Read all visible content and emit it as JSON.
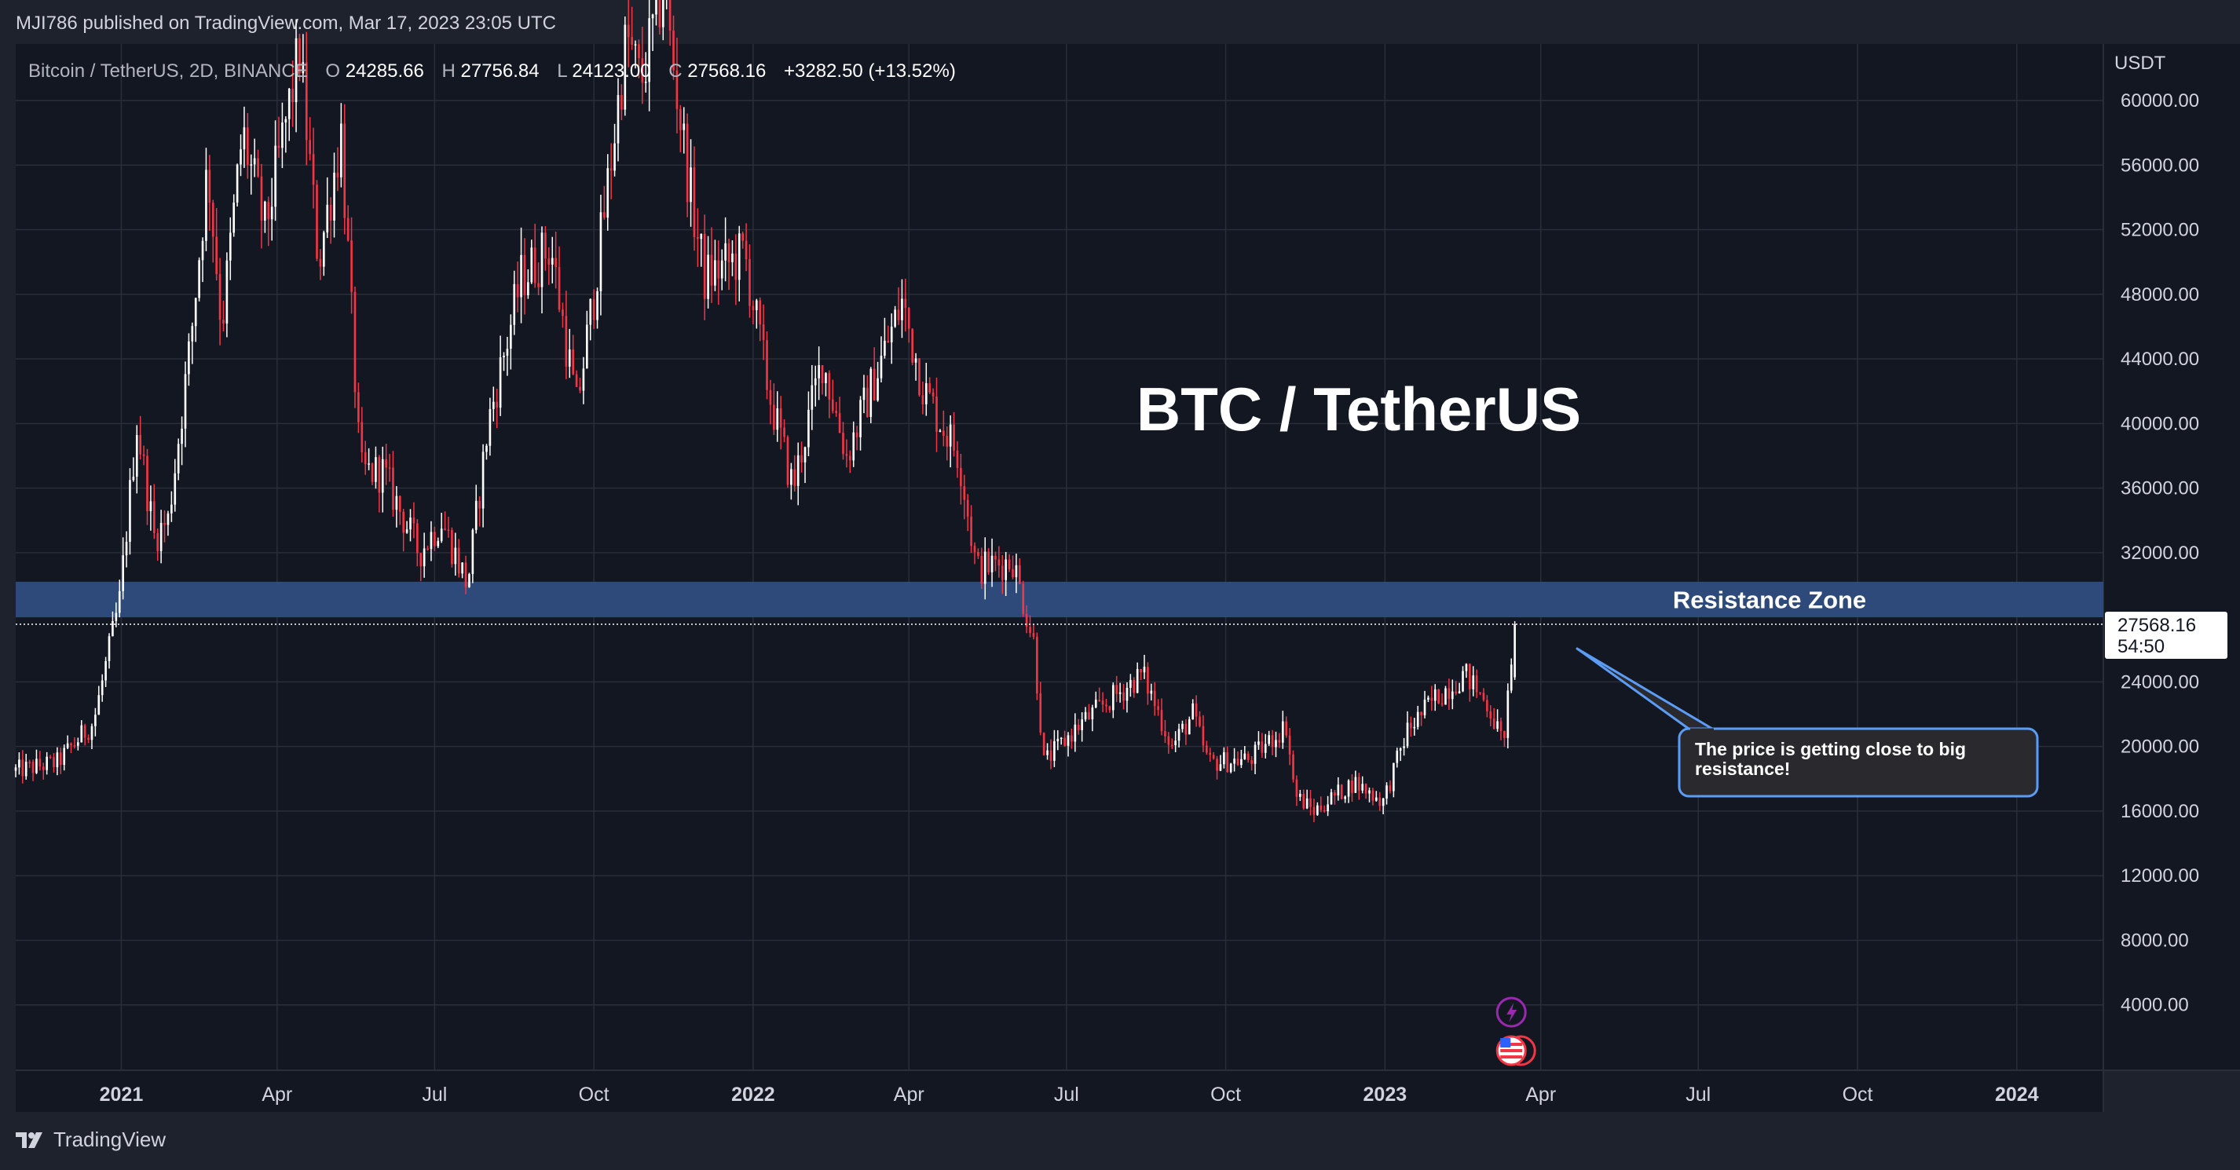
{
  "header": {
    "published": "MJI786 published on TradingView.com, Mar 17, 2023 23:05 UTC"
  },
  "legend": {
    "symbol": "Bitcoin / TetherUS, 2D, BINANCE",
    "o_label": "O",
    "o_value": "24285.66",
    "h_label": "H",
    "h_value": "27756.84",
    "l_label": "L",
    "l_value": "24123.00",
    "c_label": "C",
    "c_value": "27568.16",
    "change": "+3282.50 (+13.52%)"
  },
  "footer": {
    "brand": "TradingView"
  },
  "colors": {
    "background": "#131722",
    "frame": "#1e222d",
    "grid": "#2a2e39",
    "up_candle": "#ffffff",
    "down_candle": "#f23645",
    "resistance_fill": "#2e4a7a",
    "callout_border": "#5b9cf6",
    "callout_fill": "#2a2a2e",
    "text": "#d1d4dc"
  },
  "chart_data": {
    "type": "candlestick",
    "title": "BTC / TetherUS",
    "currency": "USDT",
    "x_range": [
      "2020-11-01",
      "2024-02-20"
    ],
    "ylim": [
      0,
      63500
    ],
    "y_ticks": [
      {
        "value": 60000,
        "label": "60000.00"
      },
      {
        "value": 56000,
        "label": "56000.00"
      },
      {
        "value": 52000,
        "label": "52000.00"
      },
      {
        "value": 48000,
        "label": "48000.00"
      },
      {
        "value": 44000,
        "label": "44000.00"
      },
      {
        "value": 40000,
        "label": "40000.00"
      },
      {
        "value": 36000,
        "label": "36000.00"
      },
      {
        "value": 32000,
        "label": "32000.00"
      },
      {
        "value": 24000,
        "label": "24000.00"
      },
      {
        "value": 20000,
        "label": "20000.00"
      },
      {
        "value": 16000,
        "label": "16000.00"
      },
      {
        "value": 12000,
        "label": "12000.00"
      },
      {
        "value": 8000,
        "label": "8000.00"
      },
      {
        "value": 4000,
        "label": "4000.00"
      }
    ],
    "x_ticks": [
      {
        "date": "2021-01-01",
        "label": "2021",
        "bold": true
      },
      {
        "date": "2021-04-01",
        "label": "Apr",
        "bold": false
      },
      {
        "date": "2021-07-01",
        "label": "Jul",
        "bold": false
      },
      {
        "date": "2021-10-01",
        "label": "Oct",
        "bold": false
      },
      {
        "date": "2022-01-01",
        "label": "2022",
        "bold": true
      },
      {
        "date": "2022-04-01",
        "label": "Apr",
        "bold": false
      },
      {
        "date": "2022-07-01",
        "label": "Jul",
        "bold": false
      },
      {
        "date": "2022-10-01",
        "label": "Oct",
        "bold": false
      },
      {
        "date": "2023-01-01",
        "label": "2023",
        "bold": true
      },
      {
        "date": "2023-04-01",
        "label": "Apr",
        "bold": false
      },
      {
        "date": "2023-07-01",
        "label": "Jul",
        "bold": false
      },
      {
        "date": "2023-10-01",
        "label": "Oct",
        "bold": false
      },
      {
        "date": "2024-01-01",
        "label": "2024",
        "bold": true
      }
    ],
    "close_path": [
      {
        "date": "2020-11-01",
        "close": 18500
      },
      {
        "date": "2020-11-25",
        "close": 19000
      },
      {
        "date": "2020-12-16",
        "close": 21500
      },
      {
        "date": "2020-12-31",
        "close": 29000
      },
      {
        "date": "2021-01-10",
        "close": 40000
      },
      {
        "date": "2021-01-20",
        "close": 33000
      },
      {
        "date": "2021-01-28",
        "close": 34000
      },
      {
        "date": "2021-02-10",
        "close": 45000
      },
      {
        "date": "2021-02-20",
        "close": 56000
      },
      {
        "date": "2021-02-28",
        "close": 46000
      },
      {
        "date": "2021-03-12",
        "close": 58000
      },
      {
        "date": "2021-03-25",
        "close": 52000
      },
      {
        "date": "2021-04-14",
        "close": 63000
      },
      {
        "date": "2021-04-25",
        "close": 50000
      },
      {
        "date": "2021-05-08",
        "close": 58000
      },
      {
        "date": "2021-05-19",
        "close": 37000
      },
      {
        "date": "2021-06-01",
        "close": 37000
      },
      {
        "date": "2021-06-22",
        "close": 32000
      },
      {
        "date": "2021-07-05",
        "close": 34000
      },
      {
        "date": "2021-07-20",
        "close": 30000
      },
      {
        "date": "2021-08-01",
        "close": 40000
      },
      {
        "date": "2021-08-20",
        "close": 49000
      },
      {
        "date": "2021-09-06",
        "close": 51000
      },
      {
        "date": "2021-09-21",
        "close": 41000
      },
      {
        "date": "2021-10-01",
        "close": 48000
      },
      {
        "date": "2021-10-20",
        "close": 64000
      },
      {
        "date": "2021-10-28",
        "close": 61000
      },
      {
        "date": "2021-11-10",
        "close": 67000
      },
      {
        "date": "2021-11-26",
        "close": 54000
      },
      {
        "date": "2021-12-04",
        "close": 49000
      },
      {
        "date": "2021-12-27",
        "close": 50500
      },
      {
        "date": "2022-01-10",
        "close": 42000
      },
      {
        "date": "2022-01-24",
        "close": 36000
      },
      {
        "date": "2022-02-10",
        "close": 44000
      },
      {
        "date": "2022-02-24",
        "close": 38000
      },
      {
        "date": "2022-03-28",
        "close": 47500
      },
      {
        "date": "2022-04-10",
        "close": 42000
      },
      {
        "date": "2022-04-30",
        "close": 38000
      },
      {
        "date": "2022-05-10",
        "close": 31000
      },
      {
        "date": "2022-05-31",
        "close": 31500
      },
      {
        "date": "2022-06-12",
        "close": 26500
      },
      {
        "date": "2022-06-18",
        "close": 19000
      },
      {
        "date": "2022-07-10",
        "close": 21500
      },
      {
        "date": "2022-08-14",
        "close": 24500
      },
      {
        "date": "2022-08-31",
        "close": 20000
      },
      {
        "date": "2022-09-12",
        "close": 22000
      },
      {
        "date": "2022-09-21",
        "close": 19000
      },
      {
        "date": "2022-10-15",
        "close": 19200
      },
      {
        "date": "2022-11-05",
        "close": 21300
      },
      {
        "date": "2022-11-10",
        "close": 17000
      },
      {
        "date": "2022-11-21",
        "close": 16000
      },
      {
        "date": "2022-12-14",
        "close": 17800
      },
      {
        "date": "2022-12-31",
        "close": 16600
      },
      {
        "date": "2023-01-14",
        "close": 21000
      },
      {
        "date": "2023-01-30",
        "close": 23000
      },
      {
        "date": "2023-02-16",
        "close": 24500
      },
      {
        "date": "2023-03-02",
        "close": 22500
      },
      {
        "date": "2023-03-10",
        "close": 20200
      },
      {
        "date": "2023-03-15",
        "close": 24500
      },
      {
        "date": "2023-03-17",
        "close": 27568.16
      }
    ],
    "last_candle": {
      "date": "2023-03-17",
      "open": 24285.66,
      "high": 27756.84,
      "low": 24123.0,
      "close": 27568.16
    },
    "last_price": {
      "value": 27568.16,
      "label": "27568.16",
      "countdown": "54:50"
    },
    "resistance_zone": {
      "low": 28000,
      "high": 30200,
      "label": "Resistance Zone"
    },
    "callout": {
      "text_line1": "The price is getting close to big",
      "text_line2": "resistance!"
    },
    "event_markers": [
      {
        "date": "2023-03-15",
        "type": "lightning"
      },
      {
        "date": "2023-03-15",
        "type": "us-flag"
      }
    ]
  }
}
